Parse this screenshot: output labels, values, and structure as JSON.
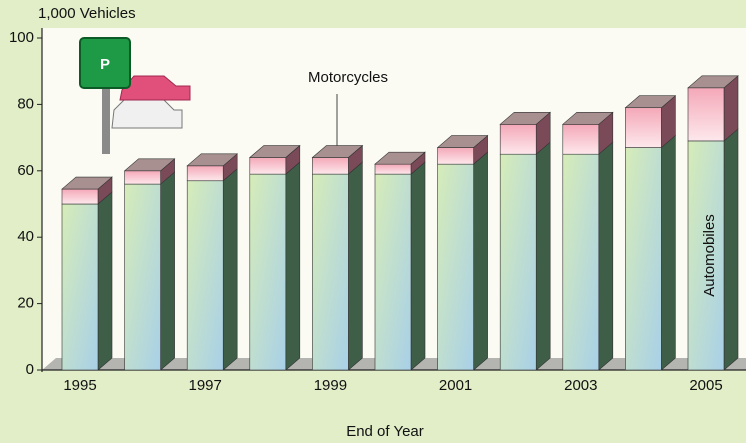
{
  "chart_data": {
    "type": "stacked-bar-3d",
    "y_label": "1,000 Vehicles",
    "x_label": "End of Year",
    "sign": "P",
    "categories": [
      "1995",
      null,
      "1997",
      null,
      "1999",
      null,
      "2001",
      null,
      "2003",
      null,
      "2005"
    ],
    "series": [
      {
        "name": "Automobiles",
        "color": "#b8dcc0",
        "values": [
          50,
          56,
          57,
          59,
          59,
          59,
          62,
          65,
          65,
          67,
          69
        ]
      },
      {
        "name": "Motorcycles",
        "color": "#f8c4cc",
        "values": [
          4.5,
          4,
          4.5,
          5,
          5,
          3,
          5,
          9,
          9,
          12,
          16
        ]
      }
    ],
    "ylim": [
      0,
      100
    ],
    "yticks": [
      0,
      20,
      40,
      60,
      80,
      100
    ]
  }
}
